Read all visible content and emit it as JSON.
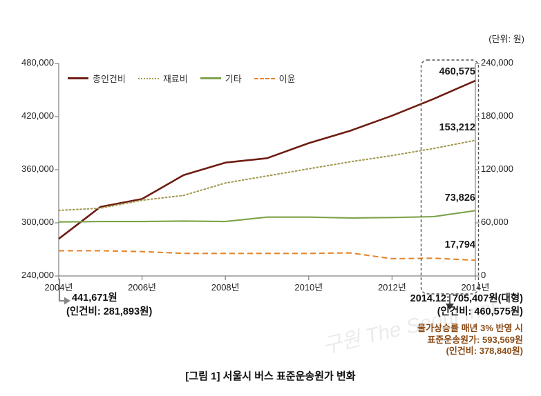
{
  "unit_label": "(단위: 원)",
  "caption": "[그림 1] 서울시 버스 표준운송원가 변화",
  "watermark": "구원 The Seoul Inst",
  "chart_data": {
    "type": "line",
    "title": "[그림 1] 서울시 버스 표준운송원가 변화",
    "unit": "(단위: 원)",
    "x_years": [
      2004,
      2005,
      2006,
      2007,
      2008,
      2009,
      2010,
      2011,
      2012,
      2013,
      2014
    ],
    "x_tick_labels": [
      "2004년",
      "2006년",
      "2008년",
      "2010년",
      "2012년",
      "2014년"
    ],
    "left_axis": {
      "min": 240000,
      "max": 480000,
      "ticks": [
        "240,000",
        "300,000",
        "360,000",
        "420,000",
        "480,000"
      ]
    },
    "right_axis": {
      "min": 0,
      "max": 240000,
      "ticks": [
        "0",
        "60,000",
        "120,000",
        "180,000",
        "240,000"
      ]
    },
    "legend_position": "top-left-inside",
    "grid": false,
    "series": [
      {
        "name": "총인건비",
        "axis": "left",
        "color": "#6e1c12",
        "style": "solid",
        "values": [
          281893,
          318000,
          327000,
          354000,
          368000,
          373000,
          390000,
          404000,
          421000,
          440000,
          460575
        ],
        "end_label": "460,575"
      },
      {
        "name": "재료비",
        "axis": "right",
        "color": "#a39a52",
        "style": "dotted",
        "values": [
          74000,
          76500,
          85500,
          91000,
          105000,
          113000,
          121000,
          129000,
          136000,
          144000,
          153212
        ],
        "end_label": "153,212"
      },
      {
        "name": "기타",
        "axis": "right",
        "color": "#7da348",
        "style": "solid",
        "values": [
          61000,
          61500,
          61500,
          62000,
          61500,
          66500,
          66500,
          65500,
          66000,
          67000,
          73826
        ],
        "end_label": "73,826"
      },
      {
        "name": "이윤",
        "axis": "right",
        "color": "#e5862c",
        "style": "dashed",
        "values": [
          28500,
          28500,
          27500,
          25500,
          25500,
          25500,
          25500,
          26000,
          19500,
          20000,
          17794
        ],
        "end_label": "17,794"
      }
    ]
  },
  "annotations": {
    "start": {
      "line1": "441,671원",
      "line2": "(인건비: 281,893원)"
    },
    "end": {
      "line1": "2014.12: 705,407원(대형)",
      "line2": "(인건비: 460,575원)",
      "line3": "물가상승률 매년 3% 반영 시",
      "line4": "표준운송원가: 593,569원",
      "line5": "(인건비: 378,840원)"
    }
  }
}
